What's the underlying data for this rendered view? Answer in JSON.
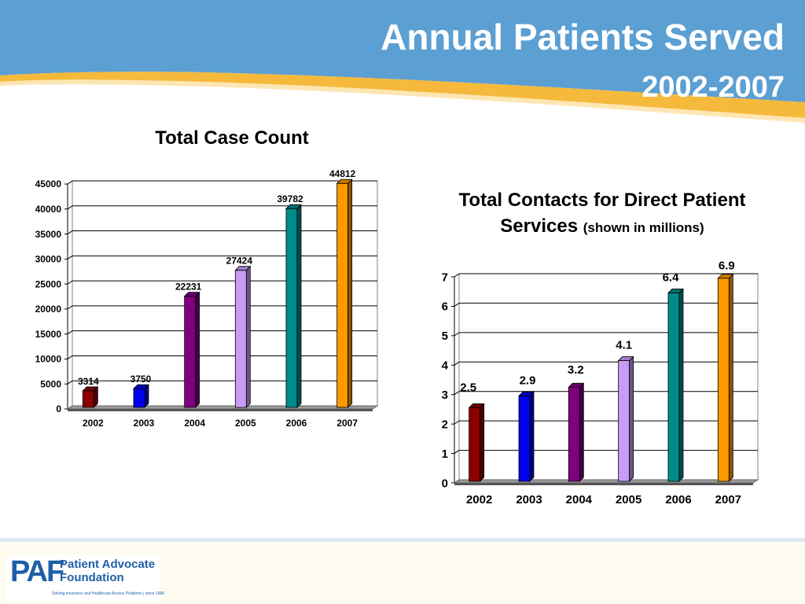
{
  "slide": {
    "title": "Annual Patients Served",
    "subtitle": "2002-2007"
  },
  "chart1_heading": "Total Case Count",
  "chart2_heading": {
    "main": "Total Contacts for Direct Patient Services",
    "note": "(shown in millions)"
  },
  "logo": {
    "mark": "PAF",
    "name": "Patient Advocate\nFoundation",
    "tagline": "Solving Insurance and Healthcare Access Problems | since 1996"
  },
  "colors": {
    "header_blue": "#5b9fd3",
    "header_stripe_gold": "#f5b93c",
    "logo_blue": "#1f5fa8"
  },
  "chart_data": [
    {
      "type": "bar",
      "title": "Total Case Count",
      "categories": [
        "2002",
        "2003",
        "2004",
        "2005",
        "2006",
        "2007"
      ],
      "values": [
        3314,
        3750,
        22231,
        27424,
        39782,
        44812
      ],
      "value_labels": [
        "3314",
        "3750",
        "22231",
        "27424",
        "39782",
        "44812"
      ],
      "bar_colors": [
        "#8b0000",
        "#0000ee",
        "#800080",
        "#c89cf5",
        "#008b8b",
        "#ff9900"
      ],
      "ylim": [
        0,
        45000
      ],
      "yticks": [
        0,
        5000,
        10000,
        15000,
        20000,
        25000,
        30000,
        35000,
        40000,
        45000
      ],
      "grid": true,
      "legend": "none",
      "xlabel": "",
      "ylabel": ""
    },
    {
      "type": "bar",
      "title": "Total Contacts for Direct Patient Services (shown in millions)",
      "categories": [
        "2002",
        "2003",
        "2004",
        "2005",
        "2006",
        "2007"
      ],
      "values": [
        2.5,
        2.9,
        3.2,
        4.1,
        6.4,
        6.9
      ],
      "value_labels": [
        "2.5",
        "2.9",
        "3.2",
        "4.1",
        "6.4",
        "6.9"
      ],
      "bar_colors": [
        "#8b0000",
        "#0000ee",
        "#800080",
        "#c89cf5",
        "#008b8b",
        "#ff9900"
      ],
      "ylim": [
        0,
        7
      ],
      "yticks": [
        0,
        1,
        2,
        3,
        4,
        5,
        6,
        7
      ],
      "grid": true,
      "legend": "none",
      "xlabel": "",
      "ylabel": ""
    }
  ]
}
